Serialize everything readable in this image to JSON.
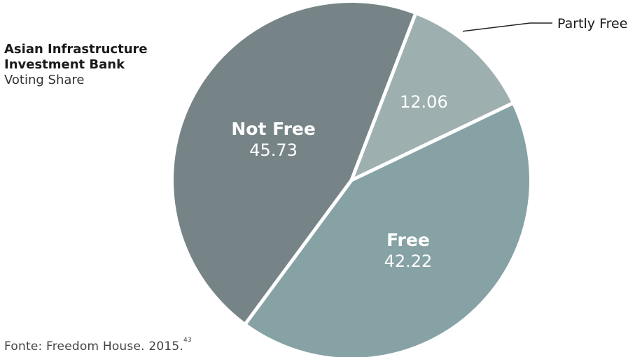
{
  "title": {
    "line1": "Asian Infrastructure",
    "line2": "Investment Bank",
    "subtitle": "Voting Share"
  },
  "source": {
    "text": "Fonte: Freedom House. 2015.",
    "footnote": "43"
  },
  "chart_data": {
    "type": "pie",
    "slices": [
      {
        "label": "Partly Free",
        "value": 12.06,
        "display": "12.06",
        "color": "#9eafaf",
        "label_position": "outside-top-right"
      },
      {
        "label": "Free",
        "value": 42.22,
        "display": "42.22",
        "color": "#87a2a4",
        "label_position": "inside"
      },
      {
        "label": "Not Free",
        "value": 45.73,
        "display": "45.73",
        "color": "#778487",
        "label_position": "inside"
      }
    ],
    "legend": "none",
    "separator_color": "#ffffff"
  }
}
